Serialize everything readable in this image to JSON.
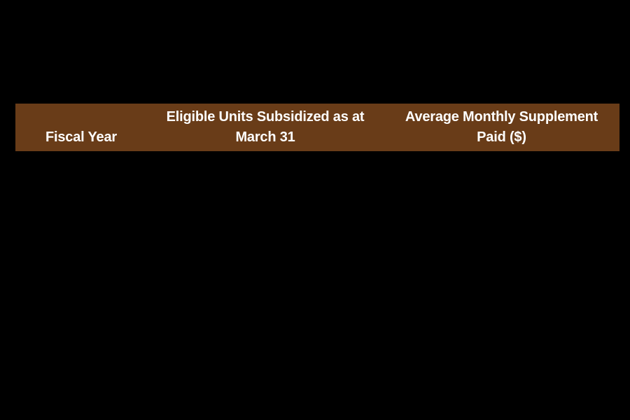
{
  "page": {
    "background_color": "#000000"
  },
  "table": {
    "header": {
      "background_color": "#693c18",
      "text_color": "#ffffff",
      "columns": [
        {
          "id": "fiscal-year",
          "lines": [
            "Fiscal Year"
          ]
        },
        {
          "id": "eligible-units",
          "lines": [
            "Eligible Units Subsidized as at",
            "March 31"
          ]
        },
        {
          "id": "avg-monthly-supplement",
          "lines": [
            "Average Monthly Supplement",
            "Paid ($)"
          ]
        }
      ]
    }
  },
  "chart_data": {
    "type": "table",
    "title": "",
    "columns": [
      "Fiscal Year",
      "Eligible Units Subsidized as at March 31",
      "Average Monthly Supplement Paid ($)"
    ],
    "rows": [],
    "layout_hints": {
      "header_background": "#693c18",
      "header_text_color": "#ffffff",
      "canvas_background": "#000000",
      "body_rows_visible": false
    }
  }
}
